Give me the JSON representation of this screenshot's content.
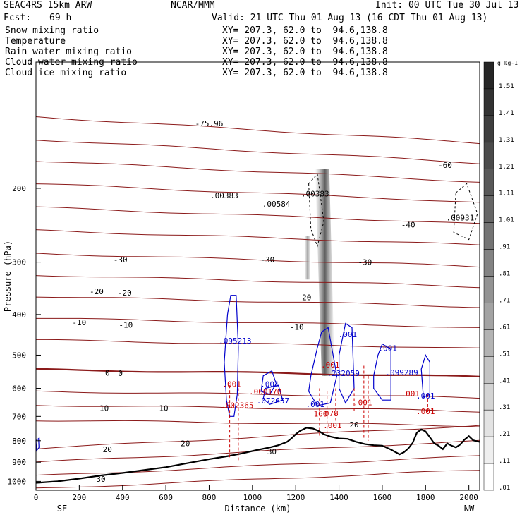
{
  "header": {
    "model": "SEAC4RS 15km ARW",
    "center": "NCAR/MMM",
    "init": "Init: 00 UTC Tue 30 Jul 13",
    "fcst_label": "Fcst:",
    "fcst_value": "69 h",
    "valid": "Valid: 21 UTC Thu 01 Aug 13 (16 CDT Thu 01 Aug 13)"
  },
  "fields": [
    {
      "name": "Snow mixing ratio",
      "xy": "XY= 207.3, 62.0 to  94.6,138.8",
      "color": "#000000"
    },
    {
      "name": "Temperature",
      "xy": "XY= 207.3, 62.0 to  94.6,138.8",
      "color": "#cc0000"
    },
    {
      "name": "Rain water mixing ratio",
      "xy": "XY= 207.3, 62.0 to  94.6,138.8",
      "color": "#cc0000"
    },
    {
      "name": "Cloud water mixing ratio",
      "xy": "XY= 207.3, 62.0 to  94.6,138.8",
      "color": "#0000cc"
    },
    {
      "name": "Cloud ice mixing ratio",
      "xy": "XY= 207.3, 62.0 to  94.6,138.8",
      "color": "#000000"
    }
  ],
  "chart_data": {
    "type": "cross-section",
    "xlabel": "Distance (km)",
    "ylabel": "Pressure (hPa)",
    "xlim": [
      0,
      2050
    ],
    "ylim": [
      1050,
      100
    ],
    "y_log": true,
    "x_ticks": [
      0,
      200,
      400,
      600,
      800,
      1000,
      1200,
      1400,
      1600,
      1800,
      2000
    ],
    "y_ticks": [
      200,
      300,
      400,
      500,
      600,
      700,
      800,
      900,
      1000
    ],
    "left_end_label": "SE",
    "right_end_label": "NW",
    "isotherm_labels": [
      {
        "text": "-75.96",
        "x": 800,
        "p": 140
      },
      {
        "text": "-60",
        "x": 1890,
        "p": 176
      },
      {
        "text": "-40",
        "x": 1720,
        "p": 244
      },
      {
        "text": "-30",
        "x": 390,
        "p": 296
      },
      {
        "text": "-30",
        "x": 1070,
        "p": 296
      },
      {
        "text": "-30",
        "x": 1520,
        "p": 300
      },
      {
        "text": "-20",
        "x": 280,
        "p": 352
      },
      {
        "text": "-20",
        "x": 410,
        "p": 355
      },
      {
        "text": "-20",
        "x": 1240,
        "p": 364
      },
      {
        "text": "-10",
        "x": 200,
        "p": 418
      },
      {
        "text": "-10",
        "x": 415,
        "p": 423
      },
      {
        "text": "-10",
        "x": 1205,
        "p": 428
      },
      {
        "text": "0",
        "x": 330,
        "p": 551
      },
      {
        "text": "0",
        "x": 390,
        "p": 552
      },
      {
        "text": "10",
        "x": 315,
        "p": 668
      },
      {
        "text": "10",
        "x": 590,
        "p": 668
      },
      {
        "text": "20",
        "x": 690,
        "p": 811
      },
      {
        "text": "20",
        "x": 330,
        "p": 839
      },
      {
        "text": "20",
        "x": 1470,
        "p": 732
      },
      {
        "text": "30",
        "x": 1090,
        "p": 848
      },
      {
        "text": "30",
        "x": 300,
        "p": 986
      }
    ],
    "max_labels": [
      {
        "text": ".00383",
        "x": 870,
        "p": 208,
        "color": "#000000"
      },
      {
        "text": ".00584",
        "x": 1110,
        "p": 218,
        "color": "#000000"
      },
      {
        "text": ".00383",
        "x": 1290,
        "p": 206,
        "color": "#000000"
      },
      {
        "text": ".00931",
        "x": 1960,
        "p": 235,
        "color": "#000000"
      },
      {
        "text": ".095213",
        "x": 920,
        "p": 462,
        "color": "#0000cc"
      },
      {
        "text": ".001",
        "x": 1440,
        "p": 446,
        "color": "#0000cc"
      },
      {
        "text": ".001",
        "x": 1625,
        "p": 481,
        "color": "#0000cc"
      },
      {
        "text": ".232059",
        "x": 1420,
        "p": 552,
        "color": "#0000cc"
      },
      {
        "text": ".099289",
        "x": 1690,
        "p": 550,
        "color": "#0000cc"
      },
      {
        "text": ".001",
        "x": 1080,
        "p": 586,
        "color": "#0000cc"
      },
      {
        "text": ".072657",
        "x": 1095,
        "p": 642,
        "color": "#0000cc"
      },
      {
        "text": ".001",
        "x": 1290,
        "p": 655,
        "color": "#0000cc"
      },
      {
        "text": ".001",
        "x": 1800,
        "p": 625,
        "color": "#0000cc"
      },
      {
        "text": ".002365",
        "x": 930,
        "p": 658,
        "color": "#cc0000"
      },
      {
        "text": ".000170",
        "x": 1060,
        "p": 611,
        "color": "#cc0000"
      },
      {
        "text": ".001",
        "x": 905,
        "p": 586,
        "color": "#cc0000"
      },
      {
        "text": ".001",
        "x": 1360,
        "p": 527,
        "color": "#cc0000"
      },
      {
        "text": ".001",
        "x": 1510,
        "p": 648,
        "color": "#cc0000"
      },
      {
        "text": ".001",
        "x": 1730,
        "p": 618,
        "color": "#cc0000"
      },
      {
        "text": ".001",
        "x": 1800,
        "p": 680,
        "color": "#cc0000"
      },
      {
        "text": ".001",
        "x": 1370,
        "p": 735,
        "color": "#cc0000"
      },
      {
        "text": "160",
        "x": 1315,
        "p": 690,
        "color": "#cc0000"
      },
      {
        "text": "078",
        "x": 1365,
        "p": 688,
        "color": "#cc0000"
      }
    ],
    "terrain": [
      [
        0,
        1008
      ],
      [
        100,
        1000
      ],
      [
        200,
        985
      ],
      [
        300,
        968
      ],
      [
        400,
        955
      ],
      [
        500,
        940
      ],
      [
        600,
        925
      ],
      [
        700,
        905
      ],
      [
        800,
        885
      ],
      [
        880,
        872
      ],
      [
        950,
        858
      ],
      [
        1020,
        842
      ],
      [
        1080,
        830
      ],
      [
        1120,
        820
      ],
      [
        1160,
        805
      ],
      [
        1180,
        790
      ],
      [
        1200,
        772
      ],
      [
        1220,
        758
      ],
      [
        1250,
        745
      ],
      [
        1280,
        748
      ],
      [
        1310,
        760
      ],
      [
        1330,
        772
      ],
      [
        1360,
        782
      ],
      [
        1400,
        790
      ],
      [
        1440,
        792
      ],
      [
        1480,
        805
      ],
      [
        1520,
        815
      ],
      [
        1560,
        820
      ],
      [
        1600,
        822
      ],
      [
        1640,
        840
      ],
      [
        1680,
        862
      ],
      [
        1700,
        852
      ],
      [
        1720,
        835
      ],
      [
        1740,
        810
      ],
      [
        1760,
        765
      ],
      [
        1780,
        752
      ],
      [
        1800,
        760
      ],
      [
        1820,
        785
      ],
      [
        1840,
        812
      ],
      [
        1860,
        822
      ],
      [
        1880,
        838
      ],
      [
        1900,
        812
      ],
      [
        1920,
        822
      ],
      [
        1940,
        830
      ],
      [
        1960,
        817
      ],
      [
        1980,
        795
      ],
      [
        2000,
        780
      ],
      [
        2020,
        798
      ],
      [
        2050,
        805
      ]
    ],
    "colorbar": {
      "unit": "g kg-1",
      "labels": [
        "1.51",
        "1.41",
        "1.31",
        "1.21",
        "1.11",
        "1.01",
        ".91",
        ".81",
        ".71",
        ".61",
        ".51",
        ".41",
        ".31",
        ".21",
        ".11",
        ".01"
      ],
      "colors": [
        "#262626",
        "#323232",
        "#3e3e3e",
        "#4b4b4b",
        "#585858",
        "#666666",
        "#747474",
        "#838383",
        "#939393",
        "#a3a3a3",
        "#b3b3b3",
        "#c3c3c3",
        "#d3d3d3",
        "#e3e3e3",
        "#efefef",
        "#ffffff"
      ]
    }
  }
}
